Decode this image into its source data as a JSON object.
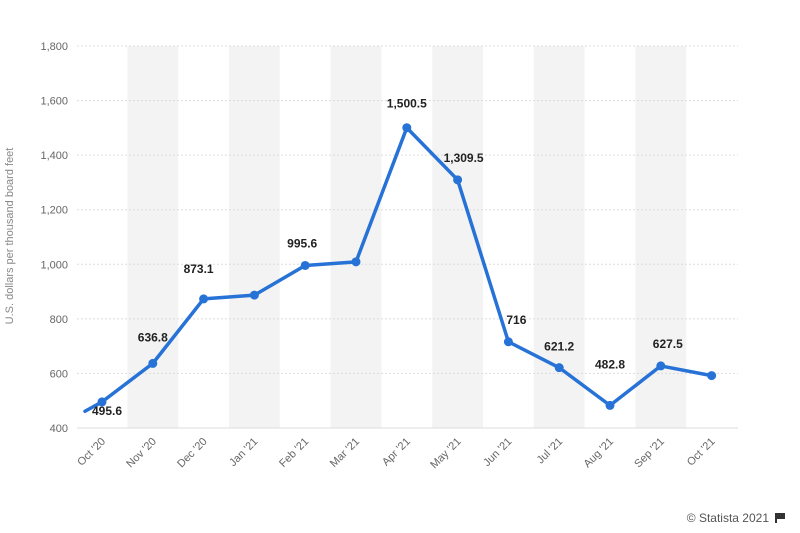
{
  "chart_data": {
    "type": "line",
    "categories": [
      "Oct '20",
      "Nov '20",
      "Dec '20",
      "Jan '21",
      "Feb '21",
      "Mar '21",
      "Apr '21",
      "May '21",
      "Jun '21",
      "Jul '21",
      "Aug '21",
      "Sep '21",
      "Oct '21"
    ],
    "values": [
      495.6,
      636.8,
      873.1,
      887,
      995.6,
      1009,
      1500.5,
      1309.5,
      716,
      621.2,
      482.8,
      627.5,
      592
    ],
    "data_labels": [
      "495.6",
      "636.8",
      "873.1",
      "",
      "995.6",
      "",
      "1,500.5",
      "1,309.5",
      "716",
      "621.2",
      "482.8",
      "627.5",
      ""
    ],
    "ylabel": "U.S. dollars per thousand board feet",
    "ylim": [
      400,
      1800
    ],
    "yticks": [
      400,
      600,
      800,
      1000,
      1200,
      1400,
      1600,
      1800
    ],
    "ytick_labels": [
      "400",
      "600",
      "800",
      "1,000",
      "1,200",
      "1,400",
      "1,600",
      "1,800"
    ],
    "grid": true,
    "line_color": "#2772d6",
    "band_color": "#f3f3f3"
  },
  "footer": {
    "credit": "© Statista 2021",
    "flag_icon": "flag-icon"
  }
}
